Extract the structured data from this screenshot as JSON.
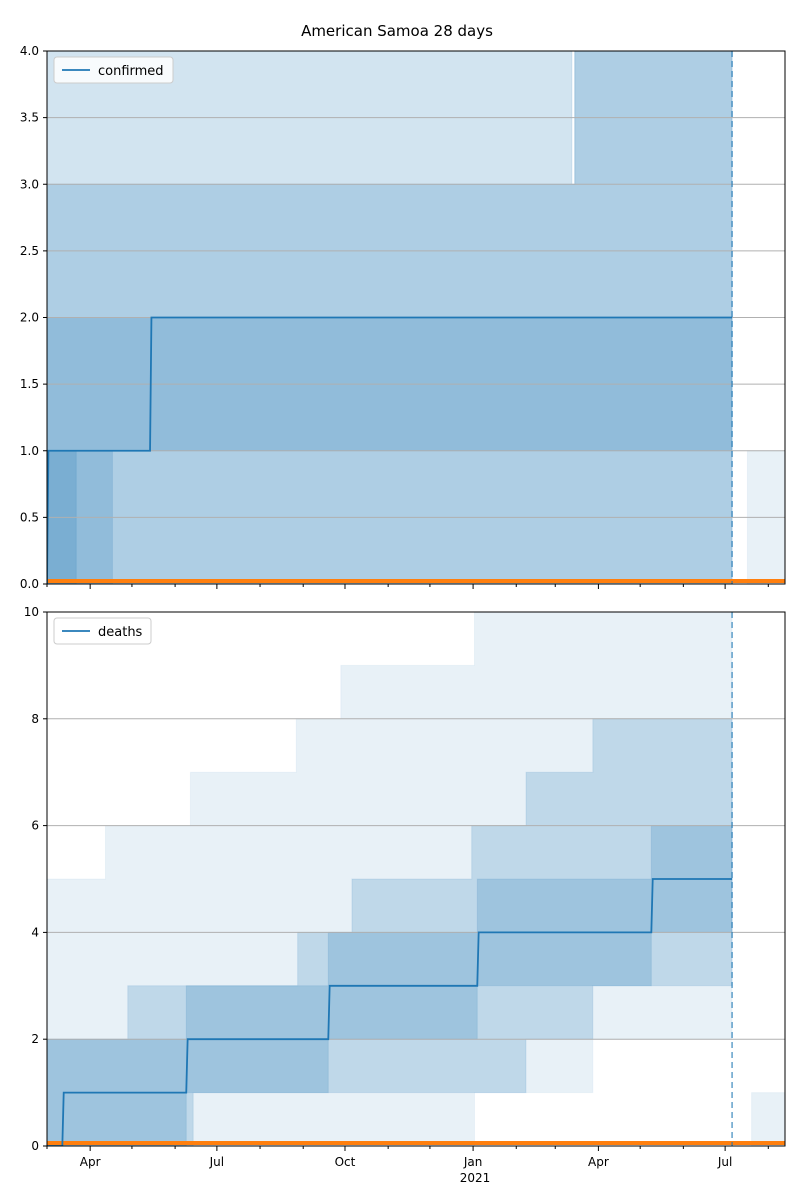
{
  "title": "American Samoa 28 days",
  "colors": {
    "series": "#1f77b4",
    "band": "#1f77b4",
    "baseline": "#ff7f0e",
    "grid": "#b0b0b0"
  },
  "vline_date": "2021-07-06",
  "x_range": [
    "2020-03-01",
    "2021-08-13"
  ],
  "x_ticks": [
    {
      "date": "2020-04-01",
      "label": "Apr"
    },
    {
      "date": "2020-07-01",
      "label": "Jul"
    },
    {
      "date": "2020-10-01",
      "label": "Oct"
    },
    {
      "date": "2021-01-01",
      "label": "Jan"
    },
    {
      "date": "2021-04-01",
      "label": "Apr"
    },
    {
      "date": "2021-07-01",
      "label": "Jul"
    }
  ],
  "year_label": "2021",
  "chart_data": [
    {
      "type": "line",
      "panel": "top",
      "series": [
        {
          "name": "confirmed",
          "x": [
            "2020-03-01",
            "2020-03-02",
            "2020-05-14",
            "2020-05-15",
            "2021-07-06"
          ],
          "y": [
            0,
            1,
            1,
            2,
            2
          ]
        }
      ],
      "ylim": [
        0,
        4
      ],
      "yticks": [
        {
          "value": 0,
          "label": "0.0"
        },
        {
          "value": 0.5,
          "label": "0.5"
        },
        {
          "value": 1,
          "label": "1.0"
        },
        {
          "value": 1.5,
          "label": "1.5"
        },
        {
          "value": 2,
          "label": "2.0"
        },
        {
          "value": 2.5,
          "label": "2.5"
        },
        {
          "value": 3,
          "label": "3.0"
        },
        {
          "value": 3.5,
          "label": "3.5"
        },
        {
          "value": 4,
          "label": "4.0"
        }
      ],
      "grid": true,
      "legend_position": "top-left",
      "bands": [
        {
          "x": [
            "2020-03-01",
            "2020-03-10",
            "2021-03-13",
            "2021-03-15",
            "2021-07-06"
          ],
          "lower": [
            0,
            0,
            0,
            0,
            0
          ],
          "upper": [
            4,
            4,
            3,
            4,
            4
          ],
          "opacity": 0.2
        },
        {
          "x": [
            "2020-03-01",
            "2020-03-20",
            "2020-03-22",
            "2021-03-15",
            "2021-07-06"
          ],
          "lower": [
            0,
            0,
            1,
            1,
            1
          ],
          "upper": [
            3,
            3,
            3,
            4,
            4
          ],
          "opacity": 0.2
        },
        {
          "x": [
            "2020-03-01",
            "2020-03-20",
            "2021-07-06"
          ],
          "lower": [
            0,
            0,
            0
          ],
          "upper": [
            2,
            2,
            2
          ],
          "opacity": 0.2
        },
        {
          "x": [
            "2020-03-01",
            "2020-04-16",
            "2020-04-17"
          ],
          "lower": [
            0,
            0,
            0
          ],
          "upper": [
            1,
            1,
            1
          ],
          "opacity": 0.2
        },
        {
          "x": [
            "2021-07-17",
            "2021-08-13"
          ],
          "lower": [
            0,
            0
          ],
          "upper": [
            1,
            1
          ],
          "opacity": 0.1
        }
      ]
    },
    {
      "type": "line",
      "panel": "bottom",
      "series": [
        {
          "name": "deaths",
          "x": [
            "2020-03-01",
            "2020-03-12",
            "2020-03-13",
            "2020-06-09",
            "2020-06-10",
            "2020-09-19",
            "2020-09-20",
            "2021-01-04",
            "2021-01-05",
            "2021-05-09",
            "2021-05-10",
            "2021-07-06"
          ],
          "y": [
            0,
            0,
            1,
            1,
            2,
            2,
            3,
            3,
            4,
            4,
            5,
            5
          ]
        }
      ],
      "ylim": [
        0,
        10
      ],
      "yticks": [
        {
          "value": 0,
          "label": "0"
        },
        {
          "value": 2,
          "label": "2"
        },
        {
          "value": 4,
          "label": "4"
        },
        {
          "value": 6,
          "label": "6"
        },
        {
          "value": 8,
          "label": "8"
        },
        {
          "value": 10,
          "label": "10"
        }
      ],
      "grid": true,
      "legend_position": "top-left",
      "bands": [
        {
          "x": [
            "2020-03-01",
            "2020-03-20",
            "2020-04-12",
            "2020-06-12",
            "2020-08-27",
            "2020-09-28",
            "2021-01-02",
            "2021-03-28",
            "2021-06-24",
            "2021-07-06"
          ],
          "lower": [
            0,
            0,
            0,
            0,
            0,
            0,
            1,
            2,
            2,
            2
          ],
          "upper": [
            5,
            5,
            6,
            7,
            8,
            9,
            10,
            10,
            10,
            10
          ],
          "opacity": 0.1
        },
        {
          "x": [
            "2020-03-01",
            "2020-04-07",
            "2020-04-28",
            "2020-06-14",
            "2020-08-28",
            "2020-10-06",
            "2020-12-31",
            "2021-02-08",
            "2021-03-28",
            "2021-06-19",
            "2021-07-06"
          ],
          "lower": [
            0,
            0,
            0,
            1,
            1,
            1,
            1,
            2,
            3,
            3,
            4
          ],
          "upper": [
            2,
            2,
            3,
            3,
            4,
            5,
            6,
            7,
            8,
            8,
            9
          ],
          "opacity": 0.2
        },
        {
          "x": [
            "2020-03-01",
            "2020-06-09",
            "2020-09-19",
            "2021-01-04",
            "2021-05-09",
            "2021-07-06"
          ],
          "lower": [
            0,
            1,
            2,
            3,
            4,
            4
          ],
          "upper": [
            2,
            3,
            4,
            5,
            6,
            7
          ],
          "opacity": 0.2
        },
        {
          "x": [
            "2021-07-20",
            "2021-08-13"
          ],
          "lower": [
            0,
            0
          ],
          "upper": [
            1,
            1
          ],
          "opacity": 0.1
        }
      ]
    }
  ]
}
